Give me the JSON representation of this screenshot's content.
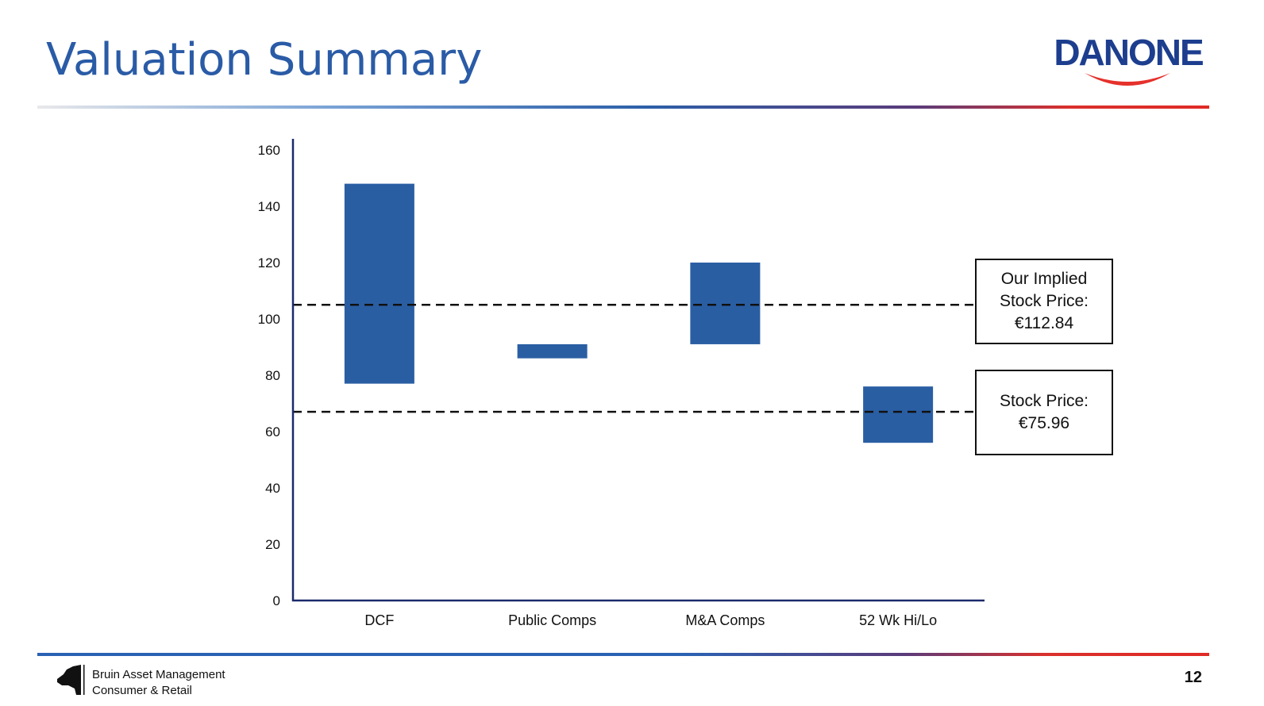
{
  "slide": {
    "title": "Valuation Summary",
    "logo_text": "DANONE",
    "page_number": "12"
  },
  "footer": {
    "line1": "Bruin Asset Management",
    "line2": "Consumer & Retail"
  },
  "callouts": {
    "implied": "Our Implied Stock Price: €112.84",
    "current": "Stock Price: €75.96"
  },
  "colors": {
    "bar": "#2a5ea3",
    "axis": "#1b2a6b",
    "title": "#2a5ba6",
    "logo_blue": "#1d3e8e",
    "logo_red": "#e5312b"
  },
  "chart_data": {
    "type": "bar",
    "subtype": "floating-range",
    "categories": [
      "DCF",
      "Public Comps",
      "M&A Comps",
      "52 Wk Hi/Lo"
    ],
    "series": [
      {
        "low": [
          77,
          86,
          91,
          56
        ],
        "high": [
          148,
          91,
          120,
          76
        ]
      }
    ],
    "ylim": [
      0,
      160
    ],
    "yticks": [
      0,
      20,
      40,
      60,
      80,
      100,
      120,
      140,
      160
    ],
    "reference_lines": [
      {
        "value": 105,
        "style": "dashed"
      },
      {
        "value": 67,
        "style": "dashed"
      }
    ],
    "grid": false,
    "title": "",
    "xlabel": "",
    "ylabel": ""
  }
}
